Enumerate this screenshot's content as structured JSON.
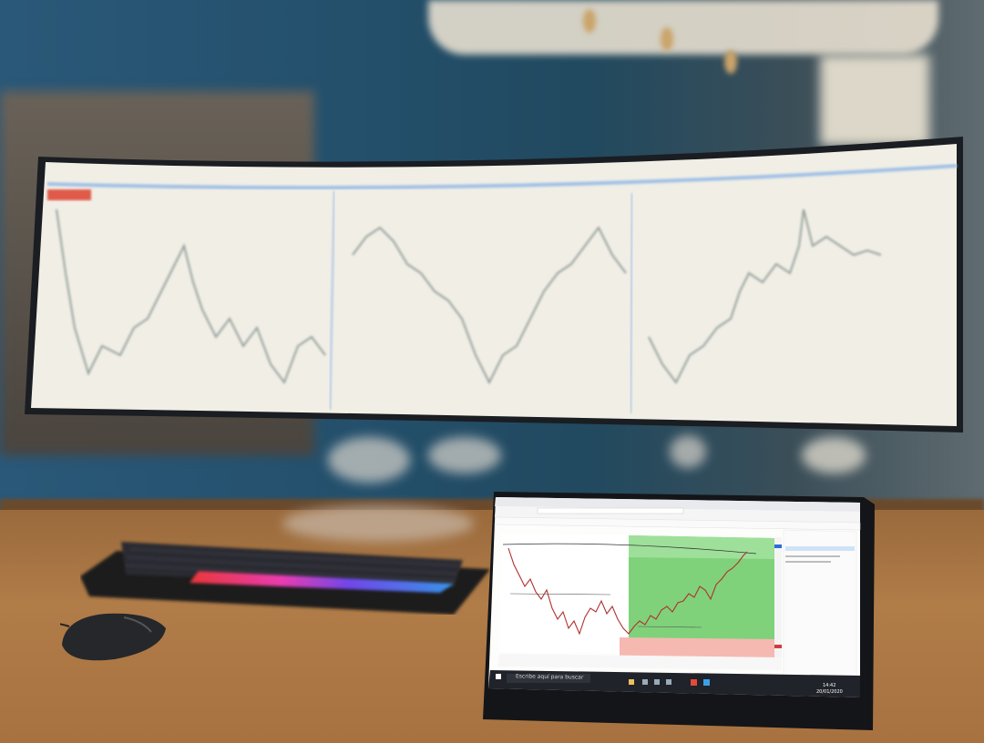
{
  "scene": {
    "description_colors": {
      "wall": "#24506c",
      "desk": "#b07c48",
      "monitor_screen": "#f1eee6",
      "tablet_green_zone": "#7fd27a",
      "tablet_red_zone": "#f5b9b2"
    }
  },
  "monitor": {
    "logo_text": ""
  },
  "tablet": {
    "search_placeholder": "Escribe aquí para buscar",
    "clock_time": "14:42",
    "clock_date": "20/01/2020"
  }
}
